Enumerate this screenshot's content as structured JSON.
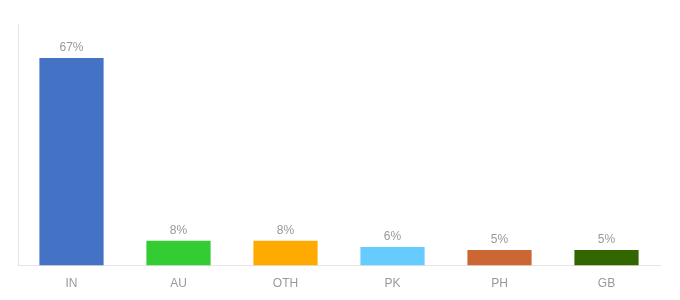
{
  "chart_data": {
    "type": "bar",
    "categories": [
      "IN",
      "AU",
      "OTH",
      "PK",
      "PH",
      "GB"
    ],
    "values": [
      67,
      8,
      8,
      6,
      5,
      5
    ],
    "value_labels": [
      "67%",
      "8%",
      "8%",
      "6%",
      "5%",
      "5%"
    ],
    "colors": [
      "#4472c4",
      "#33cc33",
      "#ffaa00",
      "#66ccff",
      "#cc6633",
      "#336600"
    ],
    "ylim": [
      0,
      78
    ],
    "grid": false,
    "data_labels": true,
    "tick_labels": "x"
  }
}
